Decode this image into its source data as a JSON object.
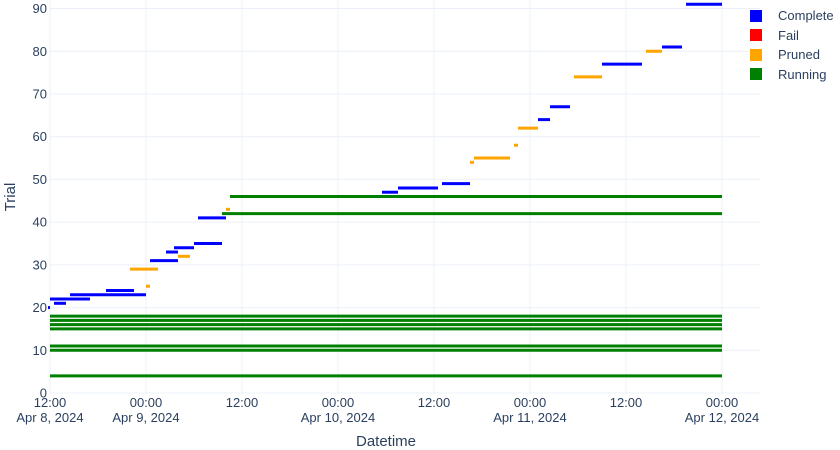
{
  "chart_data": {
    "type": "timeline",
    "xlabel": "Datetime",
    "ylabel": "Trial",
    "xlim": [
      "2024-04-08 12:00",
      "2024-04-12 00:00"
    ],
    "ylim": [
      0,
      92
    ],
    "grid": true,
    "legend_position": "top-right",
    "x_ticks": [
      {
        "value": "2024-04-08 12:00",
        "line1": "12:00",
        "line2": "Apr 8, 2024"
      },
      {
        "value": "2024-04-09 00:00",
        "line1": "00:00",
        "line2": "Apr 9, 2024"
      },
      {
        "value": "2024-04-09 12:00",
        "line1": "12:00",
        "line2": ""
      },
      {
        "value": "2024-04-10 00:00",
        "line1": "00:00",
        "line2": "Apr 10, 2024"
      },
      {
        "value": "2024-04-10 12:00",
        "line1": "12:00",
        "line2": ""
      },
      {
        "value": "2024-04-11 00:00",
        "line1": "00:00",
        "line2": "Apr 11, 2024"
      },
      {
        "value": "2024-04-11 12:00",
        "line1": "12:00",
        "line2": ""
      },
      {
        "value": "2024-04-12 00:00",
        "line1": "00:00",
        "line2": "Apr 12, 2024"
      }
    ],
    "y_ticks": [
      0,
      10,
      20,
      30,
      40,
      50,
      60,
      70,
      80,
      90
    ],
    "series": [
      {
        "name": "Complete",
        "color": "#0000ff",
        "segments": [
          {
            "trial": 20,
            "start": "2024-04-08 11:00",
            "end": "2024-04-08 12:00"
          },
          {
            "trial": 21,
            "start": "2024-04-08 12:30",
            "end": "2024-04-08 14:00"
          },
          {
            "trial": 22,
            "start": "2024-04-08 12:00",
            "end": "2024-04-08 17:00"
          },
          {
            "trial": 23,
            "start": "2024-04-08 14:30",
            "end": "2024-04-09 00:00"
          },
          {
            "trial": 24,
            "start": "2024-04-08 19:00",
            "end": "2024-04-08 22:30"
          },
          {
            "trial": 31,
            "start": "2024-04-09 00:30",
            "end": "2024-04-09 04:00"
          },
          {
            "trial": 33,
            "start": "2024-04-09 02:30",
            "end": "2024-04-09 04:00"
          },
          {
            "trial": 34,
            "start": "2024-04-09 03:30",
            "end": "2024-04-09 06:00"
          },
          {
            "trial": 35,
            "start": "2024-04-09 06:00",
            "end": "2024-04-09 09:30"
          },
          {
            "trial": 41,
            "start": "2024-04-09 06:30",
            "end": "2024-04-09 10:00"
          },
          {
            "trial": 47,
            "start": "2024-04-10 05:30",
            "end": "2024-04-10 07:30"
          },
          {
            "trial": 48,
            "start": "2024-04-10 07:30",
            "end": "2024-04-10 12:30"
          },
          {
            "trial": 49,
            "start": "2024-04-10 13:00",
            "end": "2024-04-10 16:30"
          },
          {
            "trial": 64,
            "start": "2024-04-11 01:00",
            "end": "2024-04-11 02:30"
          },
          {
            "trial": 67,
            "start": "2024-04-11 02:30",
            "end": "2024-04-11 05:00"
          },
          {
            "trial": 77,
            "start": "2024-04-11 09:00",
            "end": "2024-04-11 14:00"
          },
          {
            "trial": 81,
            "start": "2024-04-11 16:30",
            "end": "2024-04-11 19:00"
          },
          {
            "trial": 91,
            "start": "2024-04-11 19:30",
            "end": "2024-04-12 01:30"
          }
        ]
      },
      {
        "name": "Fail",
        "color": "#ff0000",
        "segments": []
      },
      {
        "name": "Pruned",
        "color": "#ffa500",
        "segments": [
          {
            "trial": 25,
            "start": "2024-04-09 00:00",
            "end": "2024-04-09 00:30"
          },
          {
            "trial": 29,
            "start": "2024-04-08 22:00",
            "end": "2024-04-09 01:30"
          },
          {
            "trial": 32,
            "start": "2024-04-09 04:00",
            "end": "2024-04-09 05:30"
          },
          {
            "trial": 43,
            "start": "2024-04-09 10:00",
            "end": "2024-04-09 10:30"
          },
          {
            "trial": 54,
            "start": "2024-04-10 16:30",
            "end": "2024-04-10 17:00"
          },
          {
            "trial": 55,
            "start": "2024-04-10 17:00",
            "end": "2024-04-10 21:30"
          },
          {
            "trial": 58,
            "start": "2024-04-10 22:00",
            "end": "2024-04-10 22:30"
          },
          {
            "trial": 62,
            "start": "2024-04-10 22:30",
            "end": "2024-04-11 01:00"
          },
          {
            "trial": 74,
            "start": "2024-04-11 05:30",
            "end": "2024-04-11 09:00"
          },
          {
            "trial": 80,
            "start": "2024-04-11 14:30",
            "end": "2024-04-11 16:30"
          }
        ]
      },
      {
        "name": "Running",
        "color": "#008000",
        "segments": [
          {
            "trial": 4,
            "start": "2024-04-08 12:00",
            "end": "2024-04-12 02:00"
          },
          {
            "trial": 10,
            "start": "2024-04-08 12:00",
            "end": "2024-04-12 02:00"
          },
          {
            "trial": 11,
            "start": "2024-04-08 12:00",
            "end": "2024-04-12 02:00"
          },
          {
            "trial": 15,
            "start": "2024-04-08 12:00",
            "end": "2024-04-12 02:00"
          },
          {
            "trial": 16,
            "start": "2024-04-08 12:00",
            "end": "2024-04-12 02:00"
          },
          {
            "trial": 17,
            "start": "2024-04-08 12:00",
            "end": "2024-04-12 02:00"
          },
          {
            "trial": 18,
            "start": "2024-04-08 12:00",
            "end": "2024-04-12 02:00"
          },
          {
            "trial": 42,
            "start": "2024-04-09 09:30",
            "end": "2024-04-12 02:00"
          },
          {
            "trial": 46,
            "start": "2024-04-09 10:30",
            "end": "2024-04-12 02:00"
          }
        ]
      }
    ]
  }
}
